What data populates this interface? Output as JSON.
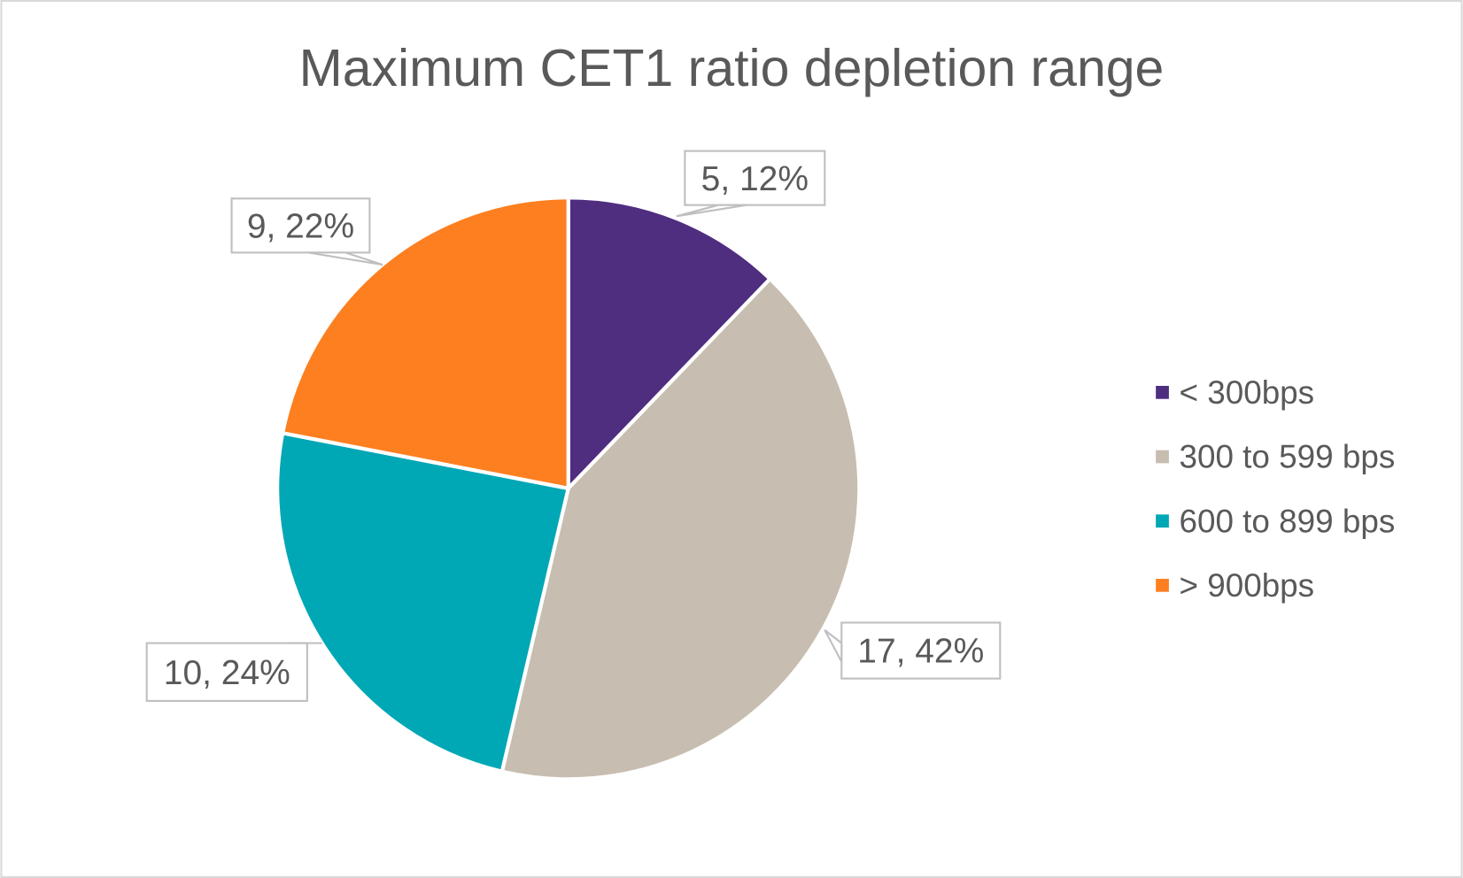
{
  "chart_data": {
    "type": "pie",
    "title": "Maximum CET1 ratio depletion range",
    "categories": [
      "< 300bps",
      "300 to 599 bps",
      "600 to 899 bps",
      "> 900bps"
    ],
    "values": [
      5,
      17,
      10,
      9
    ],
    "percent_labels": [
      "12%",
      "42%",
      "24%",
      "22%"
    ],
    "data_labels": [
      "5, 12%",
      "17, 42%",
      "10, 24%",
      "9, 22%"
    ],
    "colors": [
      "#4f2d7f",
      "#c7bdb0",
      "#00a7b5",
      "#fd7f20"
    ],
    "legend_position": "right",
    "start_angle": "12 o'clock, clockwise"
  }
}
